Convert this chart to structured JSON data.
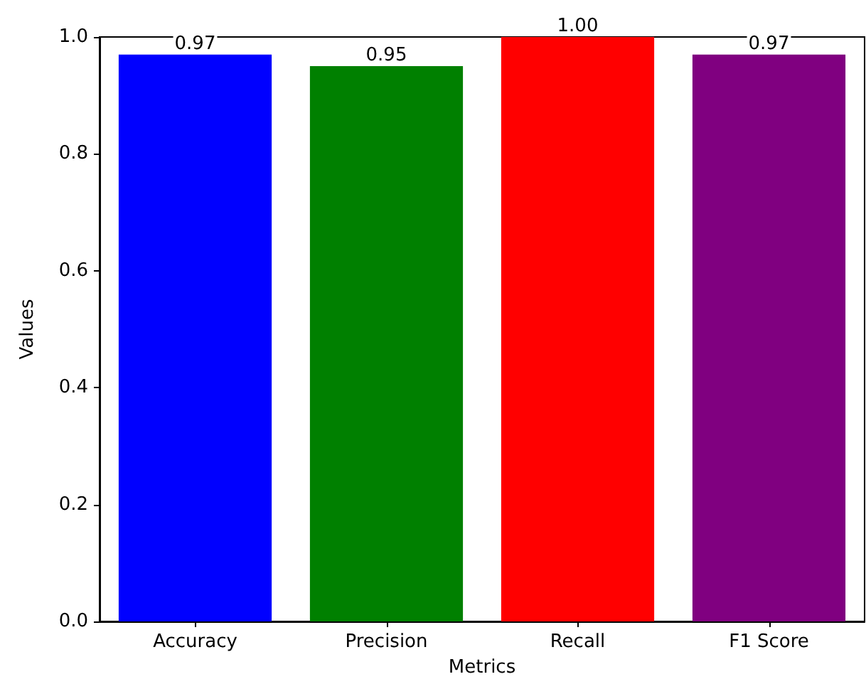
{
  "chart_data": {
    "type": "bar",
    "xlabel": "Metrics",
    "ylabel": "Values",
    "categories": [
      "Accuracy",
      "Precision",
      "Recall",
      "F1 Score"
    ],
    "values": [
      0.97,
      0.95,
      1.0,
      0.97
    ],
    "value_labels": [
      "0.97",
      "0.95",
      "1.00",
      "0.97"
    ],
    "colors": [
      "#0000ff",
      "#008000",
      "#ff0000",
      "#800080"
    ],
    "ylim": [
      0,
      1
    ],
    "yticks": [
      {
        "value": 0,
        "label": "0.0"
      },
      {
        "value": 0.2,
        "label": "0.2"
      },
      {
        "value": 0.4,
        "label": "0.4"
      },
      {
        "value": 0.6,
        "label": "0.6"
      },
      {
        "value": 0.8,
        "label": "0.8"
      },
      {
        "value": 1,
        "label": "1.0"
      }
    ],
    "grid": false
  }
}
